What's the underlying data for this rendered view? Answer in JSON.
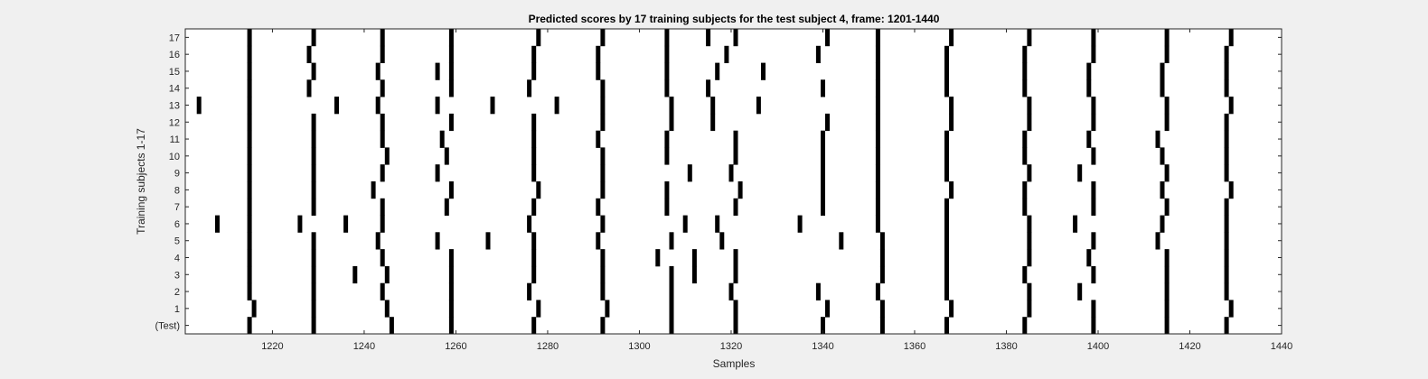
{
  "chart_data": {
    "type": "event-raster",
    "title": "Predicted scores by 17 training subjects for the test subject 4, frame: 1201-1440",
    "xlabel": "Samples",
    "ylabel": "Training subjects 1-17",
    "xlim": [
      1201,
      1440
    ],
    "xticks": [
      1220,
      1240,
      1260,
      1280,
      1300,
      1320,
      1340,
      1360,
      1380,
      1400,
      1420,
      1440
    ],
    "yticklabels": [
      "(Test)",
      "1",
      "2",
      "3",
      "4",
      "5",
      "6",
      "7",
      "8",
      "9",
      "10",
      "11",
      "12",
      "13",
      "14",
      "15",
      "16",
      "17"
    ],
    "grid": false,
    "colors": {
      "background": "#f0f0f0",
      "axes": "#ffffff",
      "mark": "#000000"
    },
    "rows": [
      {
        "label": "(Test)",
        "events": [
          1215,
          1229,
          1246,
          1259,
          1277,
          1292,
          1307,
          1321,
          1340,
          1353,
          1367,
          1384,
          1399,
          1415,
          1428
        ]
      },
      {
        "label": "1",
        "events": [
          1216,
          1229,
          1245,
          1259,
          1278,
          1293,
          1307,
          1321,
          1341,
          1353,
          1368,
          1385,
          1399,
          1415,
          1429
        ]
      },
      {
        "label": "2",
        "events": [
          1215,
          1229,
          1244,
          1259,
          1276,
          1292,
          1307,
          1320,
          1339,
          1352,
          1367,
          1385,
          1396,
          1415,
          1428
        ]
      },
      {
        "label": "3",
        "events": [
          1215,
          1229,
          1238,
          1245,
          1259,
          1277,
          1292,
          1307,
          1312,
          1321,
          1353,
          1367,
          1384,
          1399,
          1415,
          1428
        ]
      },
      {
        "label": "4",
        "events": [
          1215,
          1229,
          1244,
          1259,
          1277,
          1292,
          1304,
          1312,
          1321,
          1353,
          1367,
          1385,
          1398,
          1415,
          1428
        ]
      },
      {
        "label": "5",
        "events": [
          1215,
          1229,
          1243,
          1256,
          1267,
          1277,
          1291,
          1307,
          1318,
          1344,
          1353,
          1367,
          1385,
          1399,
          1413,
          1428
        ]
      },
      {
        "label": "6",
        "events": [
          1208,
          1215,
          1226,
          1236,
          1244,
          1276,
          1292,
          1310,
          1317,
          1335,
          1352,
          1367,
          1385,
          1395,
          1414,
          1428
        ]
      },
      {
        "label": "7",
        "events": [
          1215,
          1229,
          1244,
          1258,
          1277,
          1291,
          1306,
          1321,
          1340,
          1352,
          1367,
          1384,
          1399,
          1415,
          1428
        ]
      },
      {
        "label": "8",
        "events": [
          1215,
          1229,
          1242,
          1259,
          1278,
          1292,
          1306,
          1322,
          1340,
          1352,
          1368,
          1384,
          1399,
          1414,
          1429
        ]
      },
      {
        "label": "9",
        "events": [
          1215,
          1229,
          1244,
          1256,
          1277,
          1292,
          1311,
          1320,
          1340,
          1352,
          1367,
          1385,
          1396,
          1415,
          1428
        ]
      },
      {
        "label": "10",
        "events": [
          1215,
          1229,
          1245,
          1258,
          1277,
          1292,
          1306,
          1321,
          1340,
          1352,
          1367,
          1384,
          1399,
          1414,
          1428
        ]
      },
      {
        "label": "11",
        "events": [
          1215,
          1229,
          1244,
          1257,
          1277,
          1291,
          1306,
          1321,
          1340,
          1352,
          1367,
          1384,
          1398,
          1413,
          1428
        ]
      },
      {
        "label": "12",
        "events": [
          1215,
          1229,
          1244,
          1259,
          1277,
          1292,
          1307,
          1316,
          1341,
          1352,
          1368,
          1385,
          1399,
          1415,
          1428
        ]
      },
      {
        "label": "13",
        "events": [
          1204,
          1215,
          1234,
          1243,
          1256,
          1268,
          1282,
          1292,
          1307,
          1316,
          1326,
          1352,
          1368,
          1385,
          1399,
          1415,
          1429
        ]
      },
      {
        "label": "14",
        "events": [
          1215,
          1228,
          1244,
          1259,
          1276,
          1292,
          1306,
          1315,
          1340,
          1352,
          1367,
          1384,
          1398,
          1414,
          1428
        ]
      },
      {
        "label": "15",
        "events": [
          1215,
          1229,
          1243,
          1256,
          1259,
          1277,
          1291,
          1306,
          1317,
          1327,
          1352,
          1367,
          1384,
          1398,
          1414,
          1428
        ]
      },
      {
        "label": "16",
        "events": [
          1215,
          1228,
          1244,
          1259,
          1277,
          1291,
          1306,
          1319,
          1339,
          1352,
          1367,
          1384,
          1399,
          1415,
          1428
        ]
      },
      {
        "label": "17",
        "events": [
          1215,
          1229,
          1244,
          1259,
          1278,
          1292,
          1306,
          1315,
          1321,
          1341,
          1352,
          1368,
          1385,
          1399,
          1415,
          1429
        ]
      }
    ]
  }
}
